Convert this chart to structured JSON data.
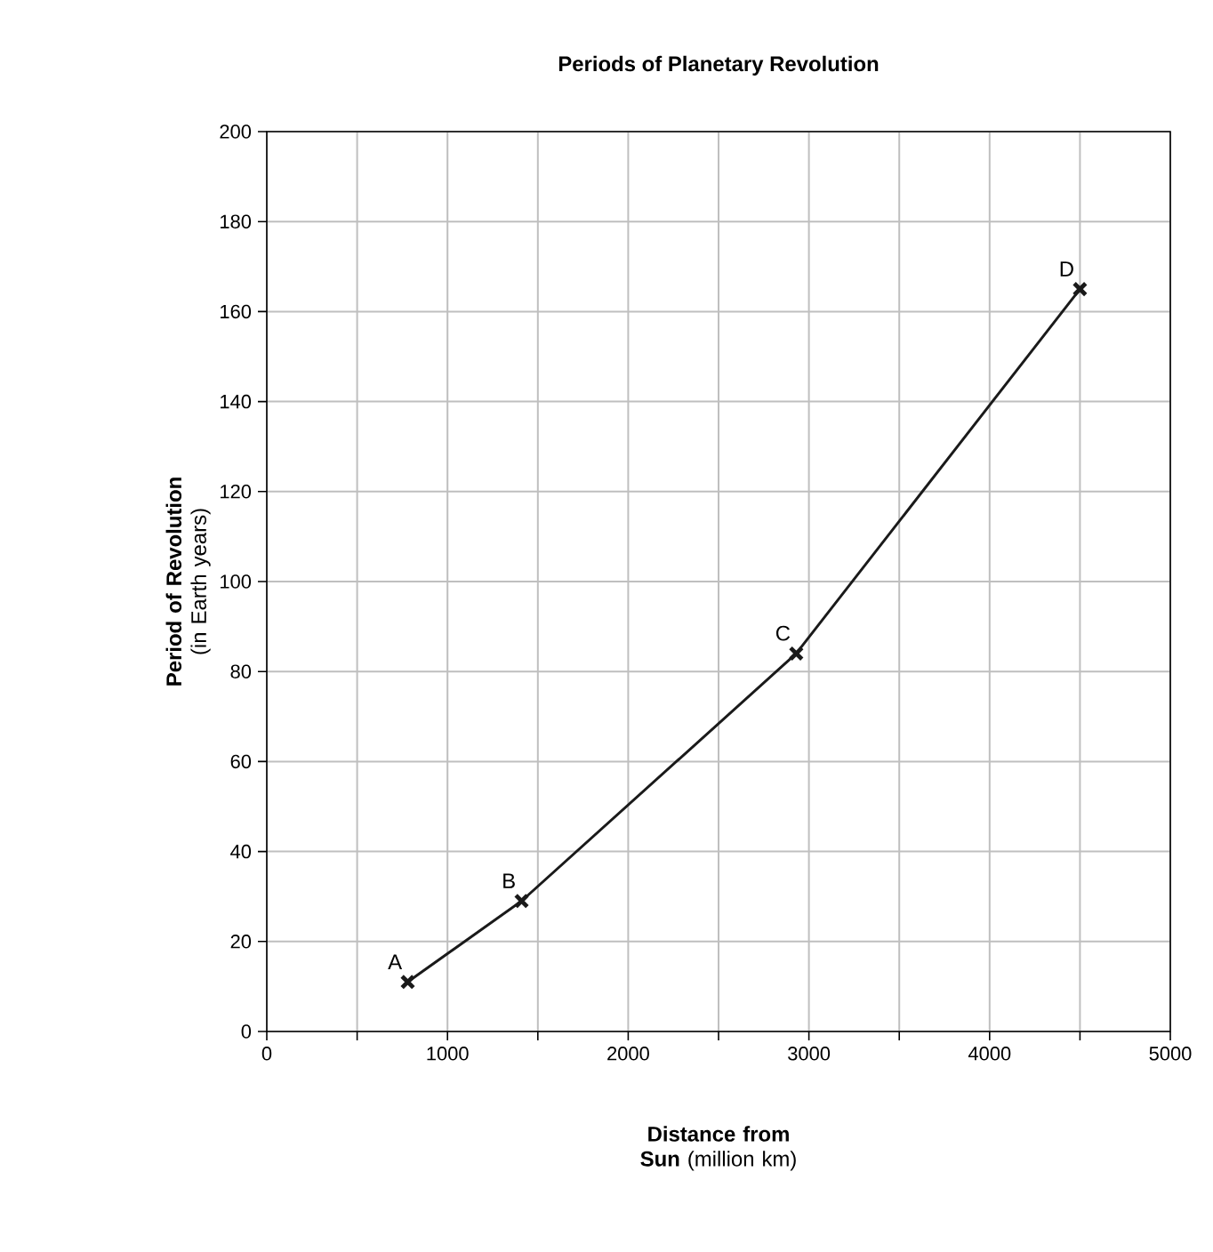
{
  "chart_data": {
    "type": "line",
    "title": "Periods of Planetary Revolution",
    "xlabel": "**Distance from Sun** (million km)",
    "ylabel": "**Period of Revolution** (in Earth years)",
    "x": [
      780,
      1410,
      2930,
      4500
    ],
    "series": [
      {
        "color": "#1a1a1a",
        "values": [
          11,
          29,
          84,
          165
        ]
      }
    ],
    "marker": "cross",
    "xlim": [
      0,
      5000
    ],
    "ylim": [
      0,
      200
    ],
    "xticks": [
      0,
      {
        "value": 500,
        "label": null
      },
      1000,
      {
        "value": 1500,
        "label": null
      },
      2000,
      {
        "value": 2500,
        "label": null
      },
      3000,
      {
        "value": 3500,
        "label": null
      },
      4000,
      {
        "value": 4500,
        "label": null
      },
      5000
    ],
    "yticks": [
      0,
      20,
      40,
      60,
      80,
      100,
      120,
      140,
      160,
      180,
      200
    ],
    "grid": true,
    "annotations": [
      {
        "text": "A",
        "x": 780,
        "y": 11
      },
      {
        "text": "B",
        "x": 1410,
        "y": 29
      },
      {
        "text": "C",
        "x": 2930,
        "y": 84
      },
      {
        "text": "D",
        "x": 4500,
        "y": 165
      }
    ]
  }
}
